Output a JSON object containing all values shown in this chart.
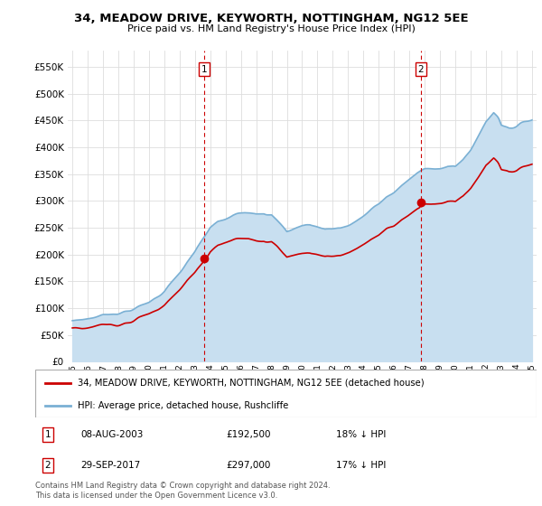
{
  "title": "34, MEADOW DRIVE, KEYWORTH, NOTTINGHAM, NG12 5EE",
  "subtitle": "Price paid vs. HM Land Registry's House Price Index (HPI)",
  "ytick_values": [
    0,
    50000,
    100000,
    150000,
    200000,
    250000,
    300000,
    350000,
    400000,
    450000,
    500000,
    550000
  ],
  "ylim": [
    0,
    580000
  ],
  "hpi_color": "#7ab0d4",
  "hpi_fill_color": "#c8dff0",
  "price_color": "#cc0000",
  "vline_color": "#cc0000",
  "transaction1": {
    "t": 2003.622,
    "price": 192500,
    "label": "1",
    "date_str": "08-AUG-2003",
    "price_str": "£192,500",
    "hpi_diff": "18% ↓ HPI"
  },
  "transaction2": {
    "t": 2017.747,
    "price": 297000,
    "label": "2",
    "date_str": "29-SEP-2017",
    "price_str": "£297,000",
    "hpi_diff": "17% ↓ HPI"
  },
  "legend_line1": "34, MEADOW DRIVE, KEYWORTH, NOTTINGHAM, NG12 5EE (detached house)",
  "legend_line2": "HPI: Average price, detached house, Rushcliffe",
  "footer": "Contains HM Land Registry data © Crown copyright and database right 2024.\nThis data is licensed under the Open Government Licence v3.0.",
  "xtick_years": [
    1995,
    1996,
    1997,
    1998,
    1999,
    2000,
    2001,
    2002,
    2003,
    2004,
    2005,
    2006,
    2007,
    2008,
    2009,
    2010,
    2011,
    2012,
    2013,
    2014,
    2015,
    2016,
    2017,
    2018,
    2019,
    2020,
    2021,
    2022,
    2023,
    2024,
    2025
  ]
}
